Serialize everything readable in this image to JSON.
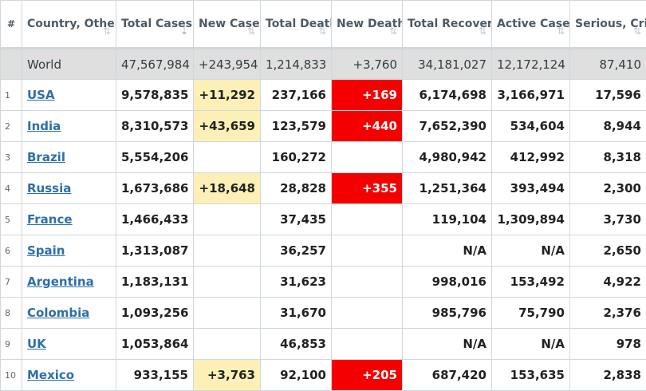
{
  "headers": [
    {
      "label": "#",
      "sort": ""
    },
    {
      "label": "Country, Other",
      "sort": "⇅"
    },
    {
      "label": "Total Cases",
      "sort": "⇣"
    },
    {
      "label": "New Cases",
      "sort": "⇅"
    },
    {
      "label": "Total Deaths",
      "sort": "⇅"
    },
    {
      "label": "New Deaths",
      "sort": "⇅"
    },
    {
      "label": "Total Recovered",
      "sort": "⇅"
    },
    {
      "label": "Active Cases",
      "sort": "⇅"
    },
    {
      "label": "Serious, Critical",
      "sort": "⇅"
    }
  ],
  "world": {
    "country": "World",
    "total_cases": "47,567,984",
    "new_cases": "+243,954",
    "total_deaths": "1,214,833",
    "new_deaths": "+3,760",
    "total_recovered": "34,181,027",
    "active_cases": "12,172,124",
    "serious_critical": "87,410"
  },
  "rows": [
    {
      "rank": "1",
      "country": "USA",
      "total_cases": "9,578,835",
      "new_cases": "+11,292",
      "total_deaths": "237,166",
      "new_deaths": "+169",
      "total_recovered": "6,174,698",
      "active_cases": "3,166,971",
      "serious_critical": "17,596"
    },
    {
      "rank": "2",
      "country": "India",
      "total_cases": "8,310,573",
      "new_cases": "+43,659",
      "total_deaths": "123,579",
      "new_deaths": "+440",
      "total_recovered": "7,652,390",
      "active_cases": "534,604",
      "serious_critical": "8,944"
    },
    {
      "rank": "3",
      "country": "Brazil",
      "total_cases": "5,554,206",
      "new_cases": "",
      "total_deaths": "160,272",
      "new_deaths": "",
      "total_recovered": "4,980,942",
      "active_cases": "412,992",
      "serious_critical": "8,318"
    },
    {
      "rank": "4",
      "country": "Russia",
      "total_cases": "1,673,686",
      "new_cases": "+18,648",
      "total_deaths": "28,828",
      "new_deaths": "+355",
      "total_recovered": "1,251,364",
      "active_cases": "393,494",
      "serious_critical": "2,300"
    },
    {
      "rank": "5",
      "country": "France",
      "total_cases": "1,466,433",
      "new_cases": "",
      "total_deaths": "37,435",
      "new_deaths": "",
      "total_recovered": "119,104",
      "active_cases": "1,309,894",
      "serious_critical": "3,730"
    },
    {
      "rank": "6",
      "country": "Spain",
      "total_cases": "1,313,087",
      "new_cases": "",
      "total_deaths": "36,257",
      "new_deaths": "",
      "total_recovered": "N/A",
      "active_cases": "N/A",
      "serious_critical": "2,650"
    },
    {
      "rank": "7",
      "country": "Argentina",
      "total_cases": "1,183,131",
      "new_cases": "",
      "total_deaths": "31,623",
      "new_deaths": "",
      "total_recovered": "998,016",
      "active_cases": "153,492",
      "serious_critical": "4,922"
    },
    {
      "rank": "8",
      "country": "Colombia",
      "total_cases": "1,093,256",
      "new_cases": "",
      "total_deaths": "31,670",
      "new_deaths": "",
      "total_recovered": "985,796",
      "active_cases": "75,790",
      "serious_critical": "2,376"
    },
    {
      "rank": "9",
      "country": "UK",
      "total_cases": "1,053,864",
      "new_cases": "",
      "total_deaths": "46,853",
      "new_deaths": "",
      "total_recovered": "N/A",
      "active_cases": "N/A",
      "serious_critical": "978"
    },
    {
      "rank": "10",
      "country": "Mexico",
      "total_cases": "933,155",
      "new_cases": "+3,763",
      "total_deaths": "92,100",
      "new_deaths": "+205",
      "total_recovered": "687,420",
      "active_cases": "153,635",
      "serious_critical": "2,838"
    }
  ],
  "colors": {
    "new_cases_highlight": "#fcf0b7",
    "new_deaths_highlight": "#f50000",
    "world_row_bg": "#dfdfdf",
    "country_link": "#2e6fa7"
  }
}
